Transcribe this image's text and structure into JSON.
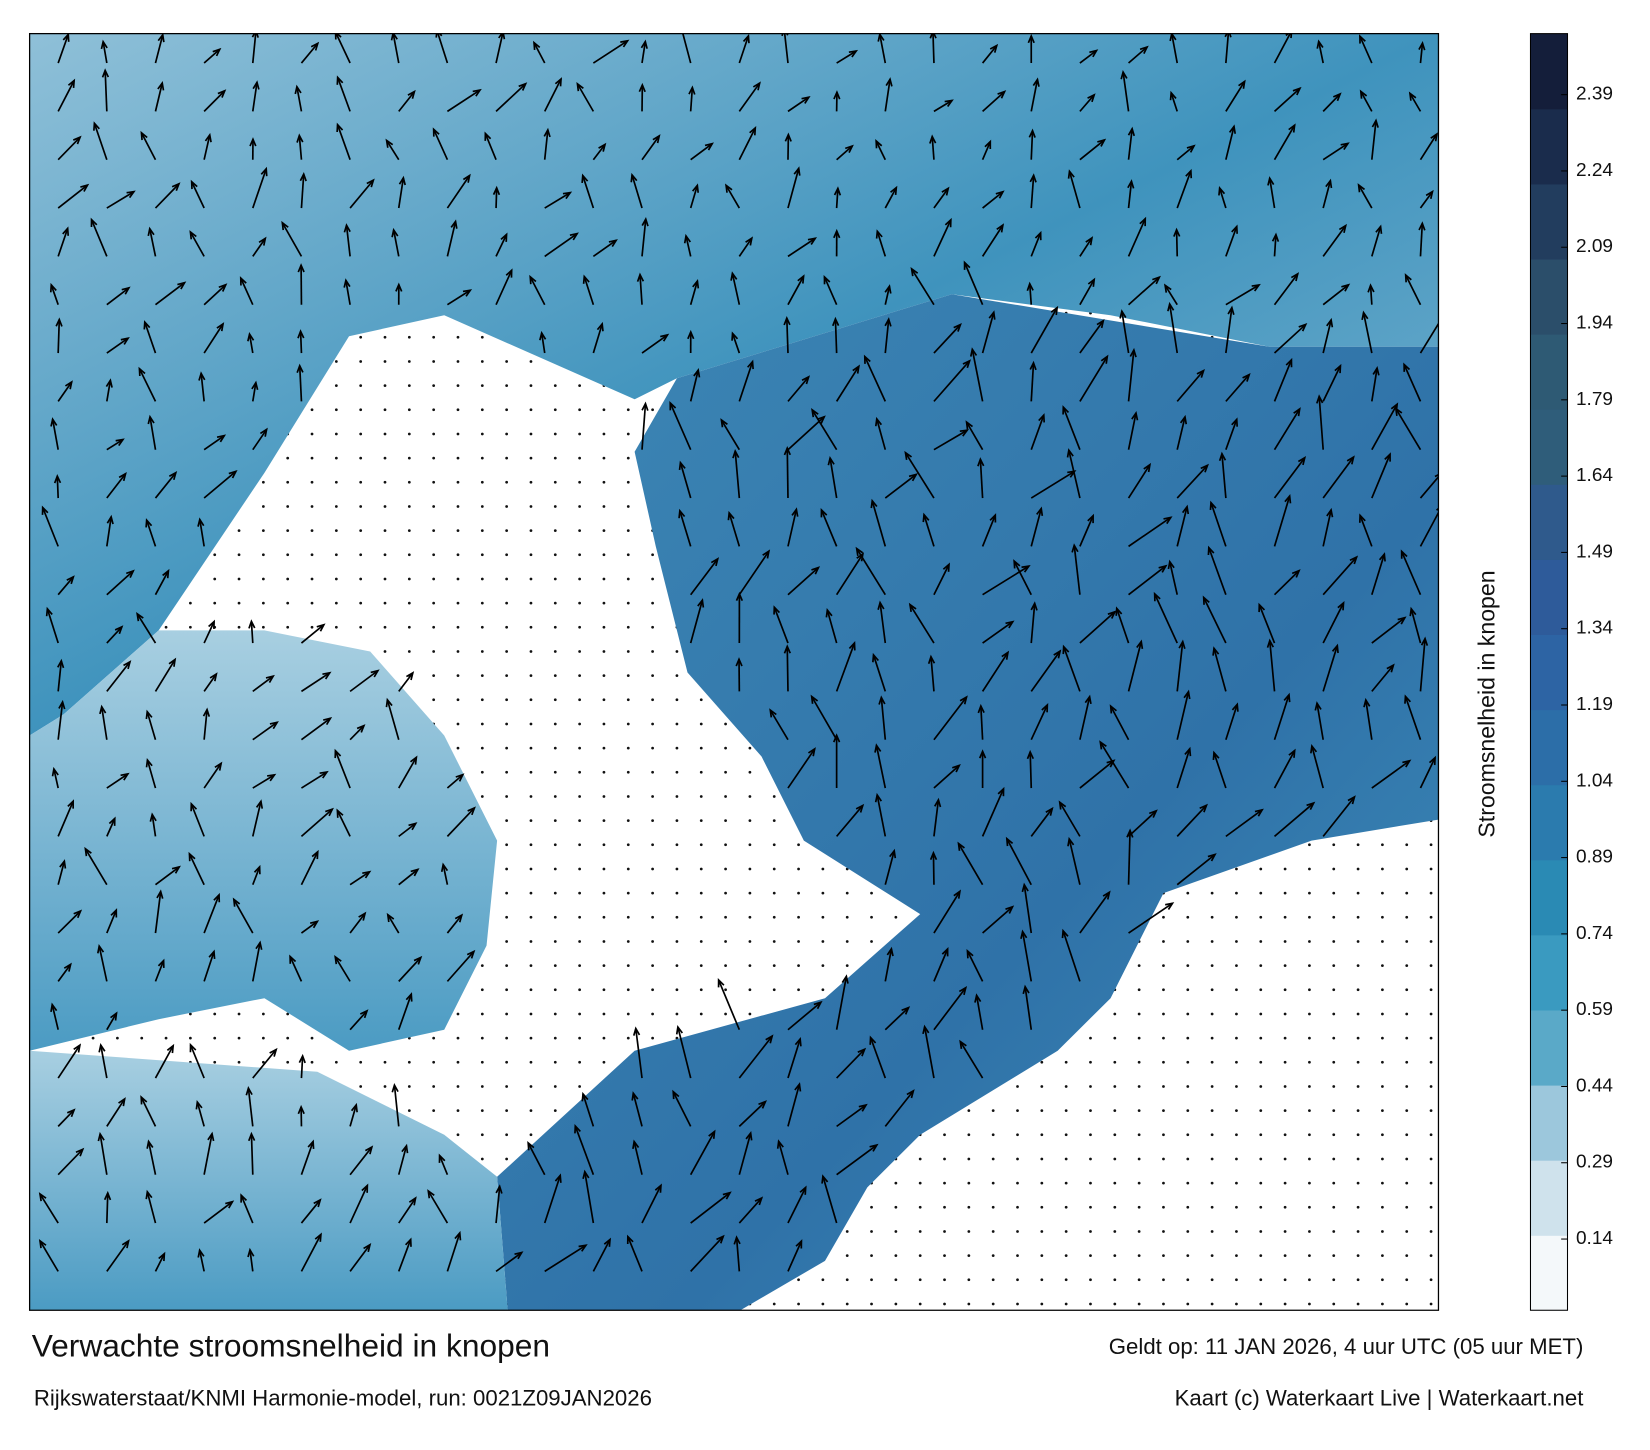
{
  "map": {
    "title": "Verwachte stroomsnelheid in knopen",
    "subtitle": "Rijkswaterstaat/KNMI Harmonie-model, run: 0021Z09JAN2026",
    "valid_time": "Geldt op: 11 JAN 2026, 4 uur UTC (05 uur MET)",
    "credit": "Kaart (c) Waterkaart Live | Waterkaart.net",
    "colorbar": {
      "label": "Stroomsnelheid in knopen",
      "lim": [
        0,
        2.51
      ],
      "ticks": [
        0.14,
        0.29,
        0.44,
        0.59,
        0.74,
        0.89,
        1.04,
        1.19,
        1.34,
        1.49,
        1.64,
        1.79,
        1.94,
        2.09,
        2.24,
        2.39
      ],
      "colors": [
        "#f4f8fa",
        "#cfe2ec",
        "#9cc7dc",
        "#5aa9c8",
        "#3a9ac0",
        "#2a8ab4",
        "#2b7bae",
        "#2c6ea8",
        "#2d64a4",
        "#2e5b9a",
        "#2f5a8c",
        "#2f5d7a",
        "#2e5a74",
        "#2b4e6a",
        "#223d5e",
        "#1a2c4c",
        "#141e3a"
      ]
    }
  }
}
